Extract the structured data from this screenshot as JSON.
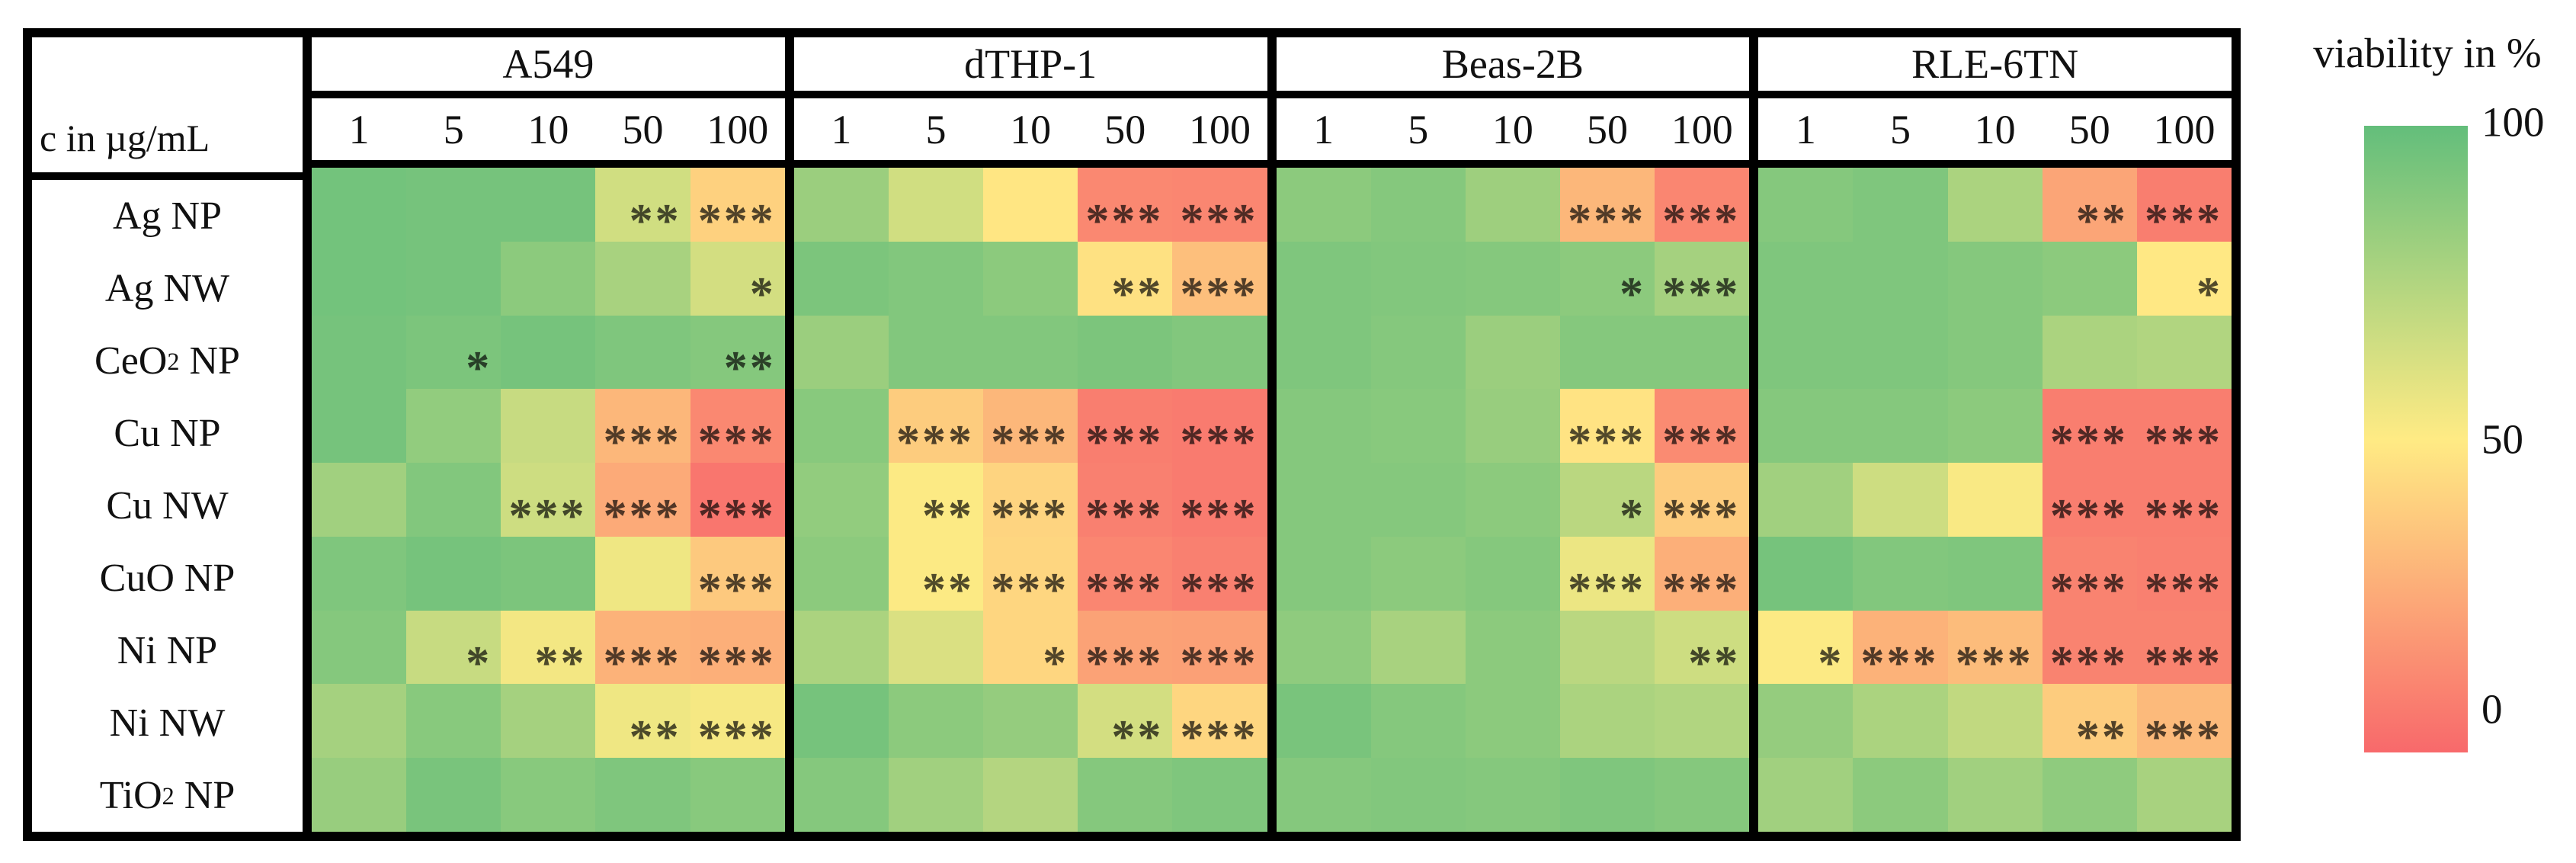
{
  "header": {
    "unit_label": "c in µg/mL",
    "cell_lines": [
      "A549",
      "dTHP-1",
      "Beas-2B",
      "RLE-6TN"
    ],
    "concentrations": [
      "1",
      "5",
      "10",
      "50",
      "100"
    ]
  },
  "rows": [
    {
      "pre": "Ag NP",
      "sub": "",
      "post": ""
    },
    {
      "pre": "Ag NW",
      "sub": "",
      "post": ""
    },
    {
      "pre": "CeO",
      "sub": "2",
      "post": " NP"
    },
    {
      "pre": "Cu NP",
      "sub": "",
      "post": ""
    },
    {
      "pre": "Cu NW",
      "sub": "",
      "post": ""
    },
    {
      "pre": "CuO NP",
      "sub": "",
      "post": ""
    },
    {
      "pre": "Ni NP",
      "sub": "",
      "post": ""
    },
    {
      "pre": "Ni NW",
      "sub": "",
      "post": ""
    },
    {
      "pre": "TiO",
      "sub": "2",
      "post": " NP"
    }
  ],
  "legend": {
    "title": "viability in %",
    "ticks": [
      "100",
      "50",
      "0"
    ]
  },
  "chart_data": {
    "type": "heatmap",
    "title": "viability in %",
    "column_groups": [
      "A549",
      "dTHP-1",
      "Beas-2B",
      "RLE-6TN"
    ],
    "concentrations_ug_per_mL": [
      1,
      5,
      10,
      50,
      100
    ],
    "row_labels": [
      "Ag NP",
      "Ag NW",
      "CeO2 NP",
      "Cu NP",
      "Cu NW",
      "CuO NP",
      "Ni NP",
      "Ni NW",
      "TiO2 NP"
    ],
    "value_unit": "viability %",
    "value_range": [
      0,
      100
    ],
    "colorscale": {
      "0": "#f8696b",
      "50": "#ffeb84",
      "100": "#63be7b"
    },
    "legend_position": "right",
    "viability_pct": {
      "A549": [
        [
          95,
          94,
          94,
          65,
          40
        ],
        [
          95,
          94,
          87,
          78,
          64
        ],
        [
          94,
          92,
          94,
          91,
          89
        ],
        [
          94,
          85,
          68,
          30,
          12
        ],
        [
          80,
          90,
          66,
          25,
          5
        ],
        [
          91,
          94,
          92,
          55,
          37
        ],
        [
          89,
          68,
          54,
          28,
          27
        ],
        [
          79,
          88,
          79,
          55,
          53
        ],
        [
          83,
          93,
          88,
          91,
          88
        ]
      ],
      "dTHP-1": [
        [
          82,
          65,
          48,
          12,
          11
        ],
        [
          92,
          90,
          87,
          46,
          33
        ],
        [
          82,
          90,
          90,
          92,
          90
        ],
        [
          88,
          38,
          30,
          8,
          7
        ],
        [
          85,
          51,
          41,
          9,
          7
        ],
        [
          87,
          51,
          42,
          11,
          9
        ],
        [
          77,
          62,
          42,
          22,
          21
        ],
        [
          94,
          87,
          84,
          64,
          42
        ],
        [
          89,
          80,
          74,
          89,
          91
        ]
      ],
      "Beas-2B": [
        [
          87,
          89,
          81,
          30,
          11
        ],
        [
          91,
          90,
          89,
          87,
          79
        ],
        [
          91,
          89,
          82,
          89,
          89
        ],
        [
          89,
          88,
          83,
          47,
          13
        ],
        [
          89,
          89,
          87,
          72,
          38
        ],
        [
          89,
          87,
          89,
          56,
          27
        ],
        [
          86,
          78,
          87,
          72,
          66
        ],
        [
          93,
          89,
          87,
          77,
          75
        ],
        [
          89,
          90,
          89,
          91,
          89
        ]
      ],
      "RLE-6TN": [
        [
          89,
          91,
          77,
          23,
          8
        ],
        [
          91,
          91,
          89,
          87,
          49
        ],
        [
          91,
          91,
          89,
          77,
          75
        ],
        [
          89,
          89,
          87,
          8,
          8
        ],
        [
          80,
          66,
          52,
          8,
          8
        ],
        [
          94,
          90,
          91,
          10,
          9
        ],
        [
          51,
          28,
          32,
          10,
          10
        ],
        [
          84,
          77,
          70,
          38,
          31
        ],
        [
          80,
          87,
          80,
          86,
          78
        ]
      ]
    },
    "significance": {
      "A549": [
        [
          "",
          "",
          "",
          "**",
          "***"
        ],
        [
          "",
          "",
          "",
          "",
          "*"
        ],
        [
          "",
          "*",
          "",
          "",
          "**"
        ],
        [
          "",
          "",
          "",
          "***",
          "***"
        ],
        [
          "",
          "",
          "***",
          "***",
          "***"
        ],
        [
          "",
          "",
          "",
          "",
          "***"
        ],
        [
          "",
          "*",
          "**",
          "***",
          "***"
        ],
        [
          "",
          "",
          "",
          "**",
          "***"
        ],
        [
          "",
          "",
          "",
          "",
          ""
        ]
      ],
      "dTHP-1": [
        [
          "",
          "",
          "",
          "***",
          "***"
        ],
        [
          "",
          "",
          "",
          "**",
          "***"
        ],
        [
          "",
          "",
          "",
          "",
          ""
        ],
        [
          "",
          "***",
          "***",
          "***",
          "***"
        ],
        [
          "",
          "**",
          "***",
          "***",
          "***"
        ],
        [
          "",
          "**",
          "***",
          "***",
          "***"
        ],
        [
          "",
          "",
          "*",
          "***",
          "***"
        ],
        [
          "",
          "",
          "",
          "**",
          "***"
        ],
        [
          "",
          "",
          "",
          "",
          ""
        ]
      ],
      "Beas-2B": [
        [
          "",
          "",
          "",
          "***",
          "***"
        ],
        [
          "",
          "",
          "",
          "*",
          "***"
        ],
        [
          "",
          "",
          "",
          "",
          ""
        ],
        [
          "",
          "",
          "",
          "***",
          "***"
        ],
        [
          "",
          "",
          "",
          "*",
          "***"
        ],
        [
          "",
          "",
          "",
          "***",
          "***"
        ],
        [
          "",
          "",
          "",
          "",
          "**"
        ],
        [
          "",
          "",
          "",
          "",
          ""
        ],
        [
          "",
          "",
          "",
          "",
          ""
        ]
      ],
      "RLE-6TN": [
        [
          "",
          "",
          "",
          "**",
          "***"
        ],
        [
          "",
          "",
          "",
          "",
          "*"
        ],
        [
          "",
          "",
          "",
          "",
          ""
        ],
        [
          "",
          "",
          "",
          "***",
          "***"
        ],
        [
          "",
          "",
          "",
          "***",
          "***"
        ],
        [
          "",
          "",
          "",
          "***",
          "***"
        ],
        [
          "*",
          "***",
          "***",
          "***",
          "***"
        ],
        [
          "",
          "",
          "",
          "**",
          "***"
        ],
        [
          "",
          "",
          "",
          "",
          ""
        ]
      ]
    }
  }
}
